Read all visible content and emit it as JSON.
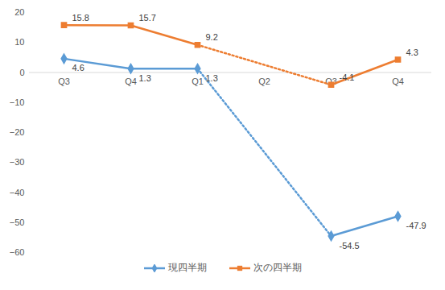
{
  "chart_data": {
    "type": "line",
    "categories": [
      "Q3",
      "Q4",
      "Q1",
      "Q2",
      "Q3",
      "Q4"
    ],
    "series": [
      {
        "name": "現四半期",
        "color": "#5B9BD5",
        "marker": "diamond",
        "values": [
          4.6,
          1.3,
          1.3,
          null,
          -54.5,
          -47.9
        ]
      },
      {
        "name": "次の四半期",
        "color": "#ED7D31",
        "marker": "square",
        "values": [
          15.8,
          15.7,
          9.2,
          null,
          -4.1,
          4.3
        ]
      }
    ],
    "ylim": [
      -60,
      20
    ],
    "yticks": [
      -60,
      -50,
      -40,
      -30,
      -20,
      -10,
      0,
      10,
      20
    ],
    "grid": false,
    "data_labels": true,
    "legend": "bottom"
  }
}
